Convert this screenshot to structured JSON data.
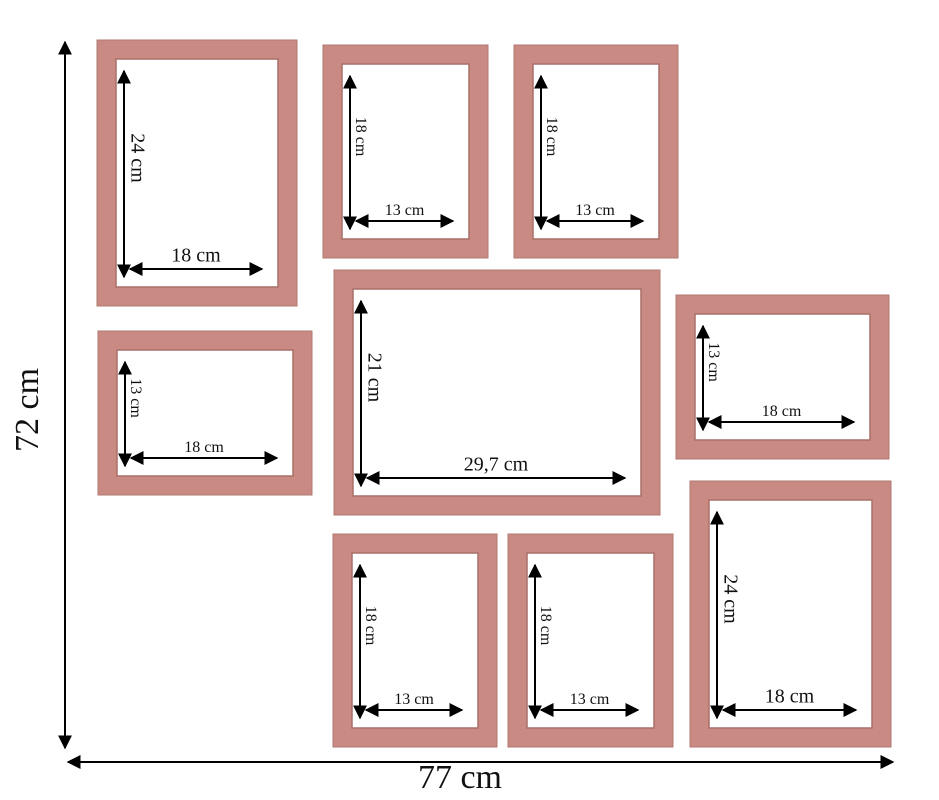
{
  "overall": {
    "height": "72 cm",
    "width": "77 cm"
  },
  "frames": [
    {
      "height": "24 cm",
      "width": "18 cm"
    },
    {
      "height": "18 cm",
      "width": "13 cm"
    },
    {
      "height": "18 cm",
      "width": "13 cm"
    },
    {
      "height": "13 cm",
      "width": "18 cm"
    },
    {
      "height": "21 cm",
      "width": "29,7 cm"
    },
    {
      "height": "13 cm",
      "width": "18 cm"
    },
    {
      "height": "18 cm",
      "width": "13 cm"
    },
    {
      "height": "18 cm",
      "width": "13 cm"
    },
    {
      "height": "24 cm",
      "width": "18 cm"
    }
  ]
}
